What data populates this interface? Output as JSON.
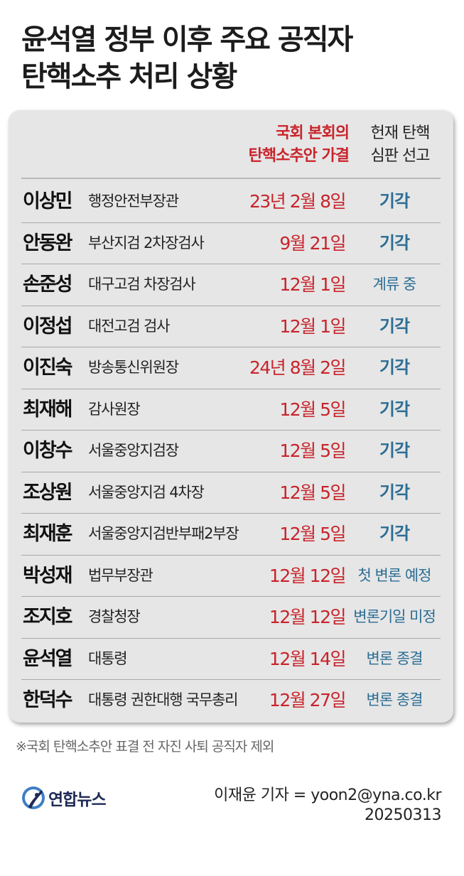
{
  "title": {
    "line1": "윤석열 정부 이후 주요 공직자",
    "line2": "탄핵소추 처리 상황"
  },
  "header": {
    "col_passed_line1": "국회 본회의",
    "col_passed_line2": "탄핵소추안 가결",
    "col_ruling_line1": "헌재 탄핵",
    "col_ruling_line2": "심판 선고"
  },
  "rows": [
    {
      "name": "이상민",
      "position": "행정안전부장관",
      "date": "23년 2월 8일",
      "result": "기각"
    },
    {
      "name": "안동완",
      "position": "부산지검 2차장검사",
      "date": "9월 21일",
      "result": "기각"
    },
    {
      "name": "손준성",
      "position": "대구고검 차장검사",
      "date": "12월 1일",
      "result": "계류 중"
    },
    {
      "name": "이정섭",
      "position": "대전고검 검사",
      "date": "12월 1일",
      "result": "기각"
    },
    {
      "name": "이진숙",
      "position": "방송통신위원장",
      "date": "24년 8월 2일",
      "result": "기각"
    },
    {
      "name": "최재해",
      "position": "감사원장",
      "date": "12월 5일",
      "result": "기각"
    },
    {
      "name": "이창수",
      "position": "서울중앙지검장",
      "date": "12월 5일",
      "result": "기각"
    },
    {
      "name": "조상원",
      "position": "서울중앙지검 4차장",
      "date": "12월 5일",
      "result": "기각"
    },
    {
      "name": "최재훈",
      "position": "서울중앙지검반부패2부장",
      "date": "12월 5일",
      "result": "기각"
    },
    {
      "name": "박성재",
      "position": "법무부장관",
      "date": "12월 12일",
      "result": "첫 변론 예정"
    },
    {
      "name": "조지호",
      "position": "경찰청장",
      "date": "12월 12일",
      "result": "변론기일 미정"
    },
    {
      "name": "윤석열",
      "position": "대통령",
      "date": "12월 14일",
      "result": "변론 종결"
    },
    {
      "name": "한덕수",
      "position": "대통령 권한대행 국무총리",
      "date": "12월 27일",
      "result": "변론 종결"
    }
  ],
  "footnote": "※국회 탄핵소추안 표결 전 자진 사퇴 공직자 제외",
  "logo": {
    "text": "연합뉴스",
    "icon": "yonhap-logo-icon"
  },
  "credit": {
    "line1": "이재윤 기자 = yoon2@yna.co.kr",
    "line2": "20250313"
  },
  "colors": {
    "red": "#c8242b",
    "blue": "#2b6d94",
    "card": "#e6e6e6"
  }
}
